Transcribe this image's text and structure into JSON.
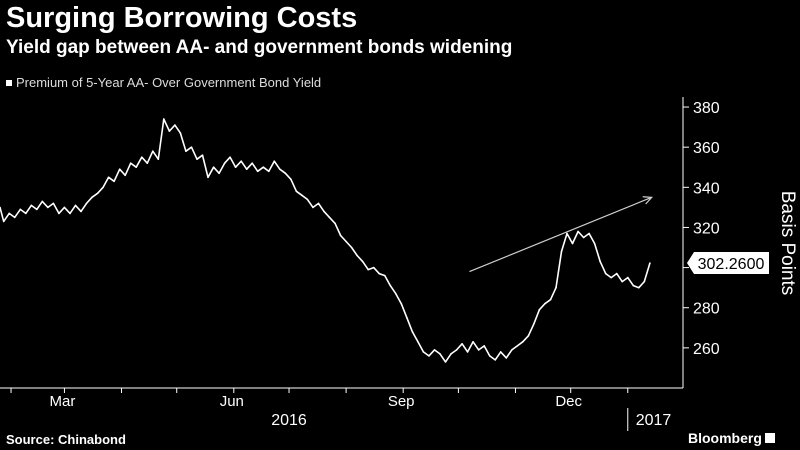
{
  "header": {
    "title": "Surging Borrowing Costs",
    "subtitle": "Yield gap between AA- and government bonds widening"
  },
  "footer": {
    "source": "Source: Chinabond",
    "brand": "Bloomberg"
  },
  "colors": {
    "background": "#000000",
    "series": "#ffffff",
    "axis": "#ffffff",
    "callout_bg": "#ffffff",
    "callout_text": "#000000"
  },
  "chart_data": {
    "type": "line",
    "legend": [
      "Premium of 5-Year AA- Over Government Bond Yield"
    ],
    "legend_position": "top-left",
    "ylabel": "Basis Points",
    "ylim": [
      240,
      385
    ],
    "y_ticks": [
      260,
      280,
      300,
      320,
      340,
      360,
      380
    ],
    "x_domain": [
      "2016-01-26",
      "2017-01-31"
    ],
    "x_tick_labels": [
      {
        "label": "Mar",
        "date": "2016-03-01"
      },
      {
        "label": "Jun",
        "date": "2016-06-01"
      },
      {
        "label": "Sep",
        "date": "2016-09-01"
      },
      {
        "label": "Dec",
        "date": "2016-12-01"
      }
    ],
    "year_labels": [
      {
        "label": "2016",
        "date": "2016-07-01"
      },
      {
        "label": "2017",
        "date": "2017-01-15"
      }
    ],
    "year_divider": "2017-01-01",
    "grid": false,
    "last_value_label": "302.2600",
    "trend_arrow": {
      "from": {
        "date": "2016-10-07",
        "value": 298
      },
      "to": {
        "date": "2017-01-14",
        "value": 335
      }
    },
    "series": [
      {
        "name": "Premium of 5-Year AA- Over Government Bond Yield",
        "points": [
          [
            "2016-01-26",
            330
          ],
          [
            "2016-01-28",
            323
          ],
          [
            "2016-01-31",
            327
          ],
          [
            "2016-02-03",
            325
          ],
          [
            "2016-02-06",
            329
          ],
          [
            "2016-02-09",
            327
          ],
          [
            "2016-02-12",
            331
          ],
          [
            "2016-02-15",
            329
          ],
          [
            "2016-02-18",
            333
          ],
          [
            "2016-02-21",
            330
          ],
          [
            "2016-02-24",
            332
          ],
          [
            "2016-02-27",
            327
          ],
          [
            "2016-03-01",
            330
          ],
          [
            "2016-03-04",
            327
          ],
          [
            "2016-03-07",
            331
          ],
          [
            "2016-03-10",
            328
          ],
          [
            "2016-03-13",
            332
          ],
          [
            "2016-03-16",
            335
          ],
          [
            "2016-03-19",
            337
          ],
          [
            "2016-03-22",
            340
          ],
          [
            "2016-03-25",
            345
          ],
          [
            "2016-03-28",
            343
          ],
          [
            "2016-03-31",
            349
          ],
          [
            "2016-04-03",
            346
          ],
          [
            "2016-04-06",
            352
          ],
          [
            "2016-04-09",
            350
          ],
          [
            "2016-04-12",
            355
          ],
          [
            "2016-04-15",
            352
          ],
          [
            "2016-04-18",
            358
          ],
          [
            "2016-04-21",
            354
          ],
          [
            "2016-04-24",
            374
          ],
          [
            "2016-04-27",
            368
          ],
          [
            "2016-04-30",
            371
          ],
          [
            "2016-05-03",
            367
          ],
          [
            "2016-05-06",
            358
          ],
          [
            "2016-05-09",
            360
          ],
          [
            "2016-05-12",
            354
          ],
          [
            "2016-05-15",
            356
          ],
          [
            "2016-05-18",
            345
          ],
          [
            "2016-05-21",
            350
          ],
          [
            "2016-05-24",
            347
          ],
          [
            "2016-05-27",
            352
          ],
          [
            "2016-05-30",
            355
          ],
          [
            "2016-06-02",
            350
          ],
          [
            "2016-06-05",
            353
          ],
          [
            "2016-06-08",
            349
          ],
          [
            "2016-06-11",
            352
          ],
          [
            "2016-06-14",
            348
          ],
          [
            "2016-06-17",
            350
          ],
          [
            "2016-06-20",
            348
          ],
          [
            "2016-06-23",
            353
          ],
          [
            "2016-06-26",
            349
          ],
          [
            "2016-06-29",
            347
          ],
          [
            "2016-07-02",
            344
          ],
          [
            "2016-07-05",
            338
          ],
          [
            "2016-07-08",
            336
          ],
          [
            "2016-07-11",
            334
          ],
          [
            "2016-07-14",
            330
          ],
          [
            "2016-07-17",
            332
          ],
          [
            "2016-07-20",
            328
          ],
          [
            "2016-07-23",
            325
          ],
          [
            "2016-07-26",
            322
          ],
          [
            "2016-07-29",
            316
          ],
          [
            "2016-08-01",
            313
          ],
          [
            "2016-08-04",
            310
          ],
          [
            "2016-08-07",
            306
          ],
          [
            "2016-08-10",
            303
          ],
          [
            "2016-08-13",
            299
          ],
          [
            "2016-08-16",
            300
          ],
          [
            "2016-08-19",
            297
          ],
          [
            "2016-08-22",
            296
          ],
          [
            "2016-08-25",
            291
          ],
          [
            "2016-08-28",
            287
          ],
          [
            "2016-08-31",
            282
          ],
          [
            "2016-09-03",
            275
          ],
          [
            "2016-09-06",
            268
          ],
          [
            "2016-09-09",
            263
          ],
          [
            "2016-09-12",
            258
          ],
          [
            "2016-09-15",
            256
          ],
          [
            "2016-09-18",
            259
          ],
          [
            "2016-09-21",
            257
          ],
          [
            "2016-09-24",
            253
          ],
          [
            "2016-09-27",
            257
          ],
          [
            "2016-09-30",
            259
          ],
          [
            "2016-10-03",
            262
          ],
          [
            "2016-10-06",
            258
          ],
          [
            "2016-10-09",
            263
          ],
          [
            "2016-10-12",
            259
          ],
          [
            "2016-10-15",
            261
          ],
          [
            "2016-10-18",
            256
          ],
          [
            "2016-10-21",
            254
          ],
          [
            "2016-10-24",
            258
          ],
          [
            "2016-10-27",
            255
          ],
          [
            "2016-10-30",
            259
          ],
          [
            "2016-11-02",
            261
          ],
          [
            "2016-11-05",
            263
          ],
          [
            "2016-11-08",
            266
          ],
          [
            "2016-11-11",
            272
          ],
          [
            "2016-11-14",
            279
          ],
          [
            "2016-11-17",
            282
          ],
          [
            "2016-11-20",
            284
          ],
          [
            "2016-11-23",
            290
          ],
          [
            "2016-11-26",
            308
          ],
          [
            "2016-11-29",
            317
          ],
          [
            "2016-12-02",
            312
          ],
          [
            "2016-12-05",
            318
          ],
          [
            "2016-12-08",
            315
          ],
          [
            "2016-12-11",
            317
          ],
          [
            "2016-12-14",
            312
          ],
          [
            "2016-12-17",
            303
          ],
          [
            "2016-12-20",
            297
          ],
          [
            "2016-12-23",
            295
          ],
          [
            "2016-12-26",
            297
          ],
          [
            "2016-12-29",
            293
          ],
          [
            "2017-01-01",
            295
          ],
          [
            "2017-01-04",
            291
          ],
          [
            "2017-01-07",
            290
          ],
          [
            "2017-01-10",
            293
          ],
          [
            "2017-01-13",
            302.26
          ]
        ]
      }
    ]
  }
}
